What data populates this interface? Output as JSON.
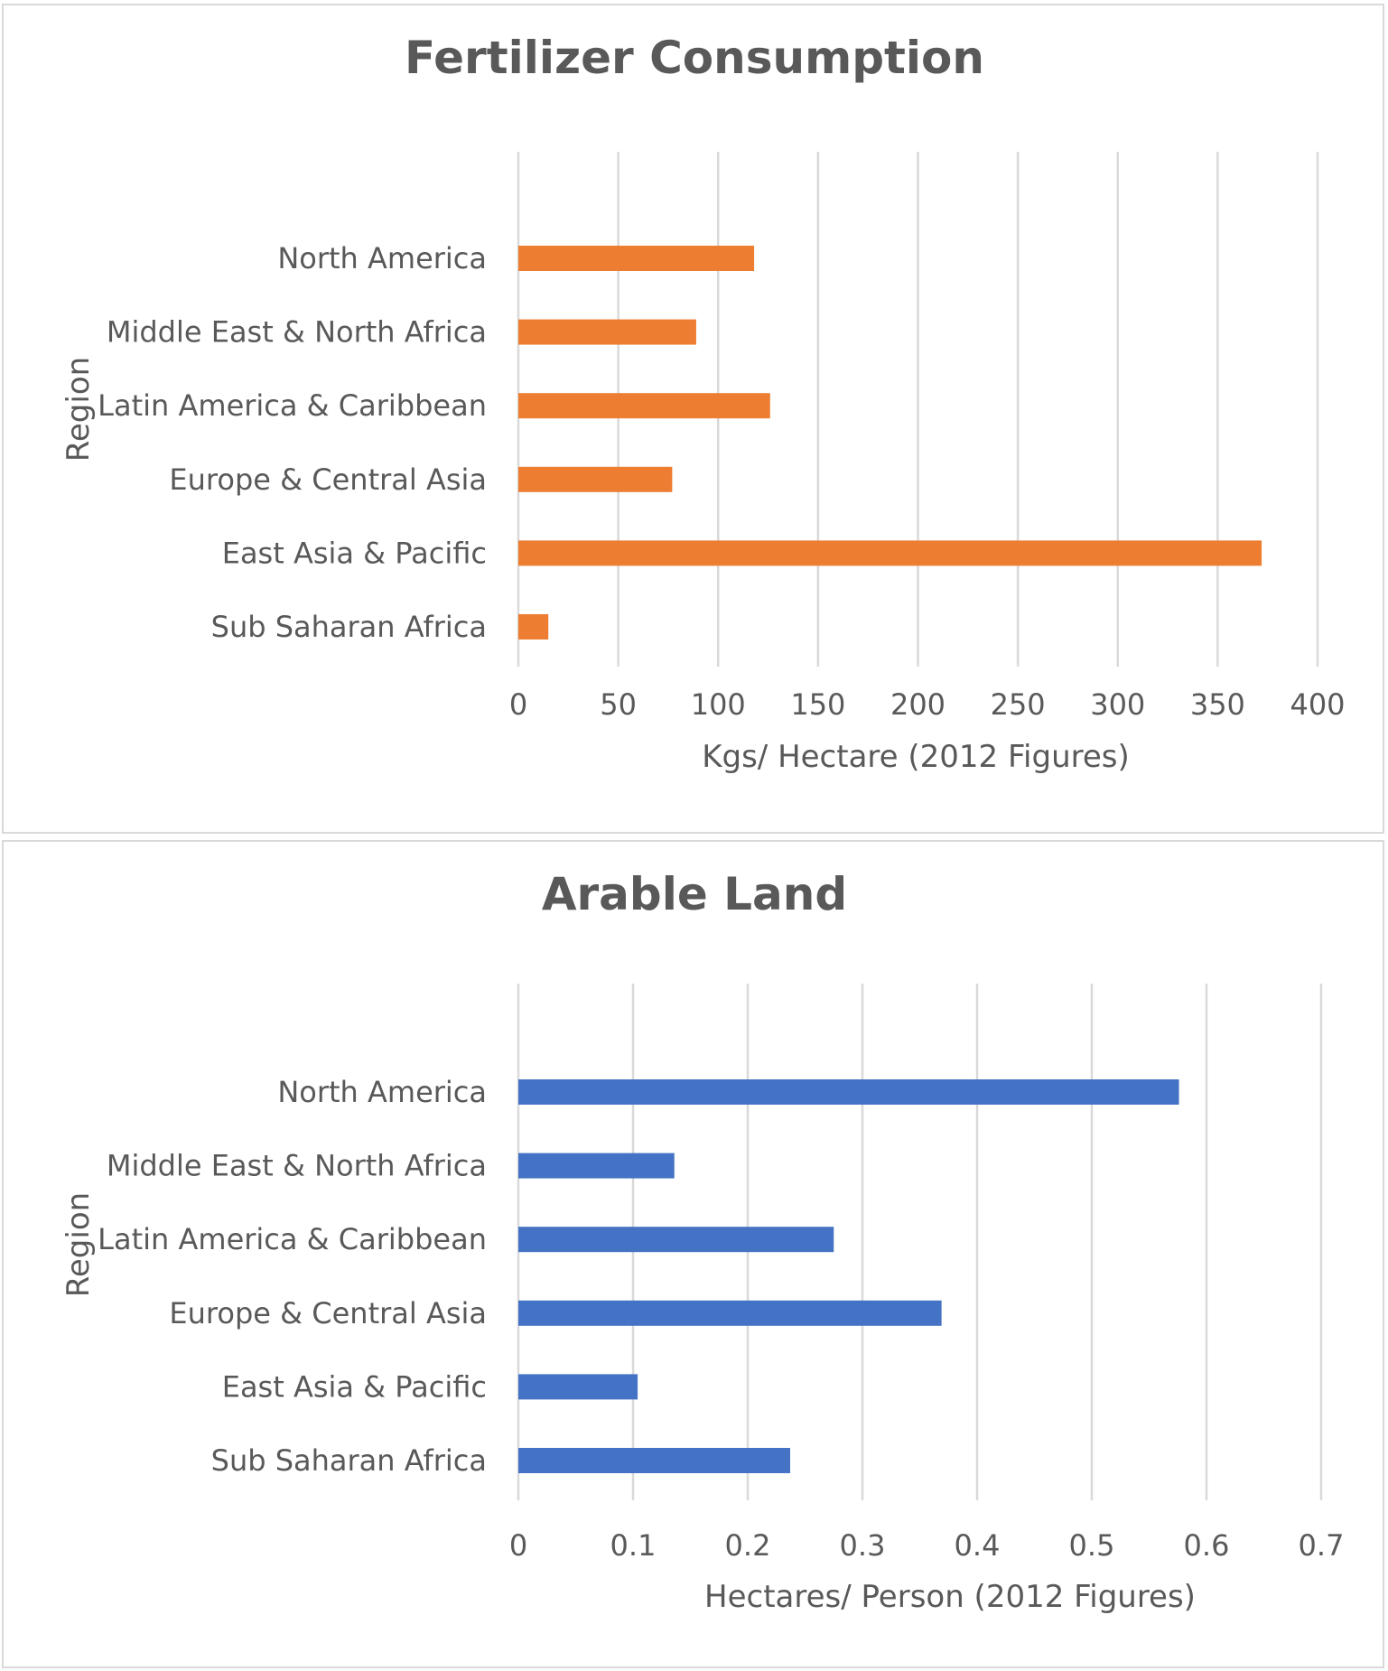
{
  "chart_data": [
    {
      "type": "bar",
      "orientation": "horizontal",
      "title": "Fertilizer Consumption",
      "xlabel": "Kgs/ Hectare (2012 Figures)",
      "ylabel": "Region",
      "categories": [
        "North America",
        "Middle East & North Africa",
        "Latin America & Caribbean",
        "Europe & Central Asia",
        "East Asia & Pacific",
        "Sub Saharan Africa"
      ],
      "values": [
        118,
        89,
        126,
        77,
        372,
        15
      ],
      "xlim": [
        0,
        400
      ],
      "xticks": [
        0,
        50,
        100,
        150,
        200,
        250,
        300,
        350,
        400
      ],
      "xtick_labels": [
        "0",
        "50",
        "100",
        "150",
        "200",
        "250",
        "300",
        "350",
        "400"
      ],
      "color": "#ed7d31",
      "grid": "vertical"
    },
    {
      "type": "bar",
      "orientation": "horizontal",
      "title": "Arable Land",
      "xlabel": "Hectares/ Person (2012 Figures)",
      "ylabel": "Region",
      "categories": [
        "North America",
        "Middle East & North Africa",
        "Latin America & Caribbean",
        "Europe & Central Asia",
        "East Asia & Pacific",
        "Sub Saharan Africa"
      ],
      "values": [
        0.576,
        0.136,
        0.275,
        0.369,
        0.104,
        0.237
      ],
      "xlim": [
        0,
        0.7
      ],
      "xticks": [
        0,
        0.1,
        0.2,
        0.3,
        0.4,
        0.5,
        0.6,
        0.7
      ],
      "xtick_labels": [
        "0",
        "0.1",
        "0.2",
        "0.3",
        "0.4",
        "0.5",
        "0.6",
        "0.7"
      ],
      "color": "#4472c4",
      "grid": "vertical"
    }
  ]
}
